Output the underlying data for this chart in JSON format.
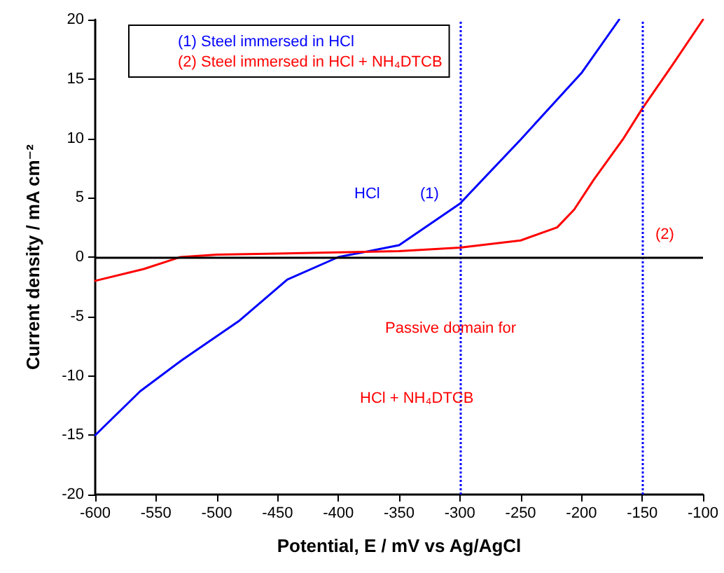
{
  "chart_data": {
    "type": "line",
    "xlabel": "Potential, E / mV vs Ag/AgCl",
    "ylabel": "Current density / mA cm⁻²",
    "xlim": [
      -600,
      -100
    ],
    "xticks": [
      -600,
      -550,
      -500,
      -450,
      -400,
      -350,
      -300,
      -250,
      -200,
      -150,
      -100
    ],
    "ylim": [
      -20,
      20
    ],
    "yticks": [
      -20,
      -15,
      -10,
      -5,
      0,
      5,
      10,
      15,
      20
    ],
    "series": [
      {
        "name": "(1) Steel immersed in HCl",
        "color": "#0000ff",
        "x": [
          -600,
          -563,
          -529,
          -482,
          -442,
          -400,
          -350,
          -300,
          -250,
          -200,
          -169
        ],
        "values": [
          -15,
          -11.3,
          -8.7,
          -5.4,
          -1.9,
          0,
          1.0,
          4.5,
          9.9,
          15.5,
          20
        ]
      },
      {
        "name": "(2) Steel immersed in HCl + NH₄DTCB",
        "color": "#ff0000",
        "x": [
          -600,
          -560,
          -530,
          -500,
          -450,
          -400,
          -350,
          -300,
          -250,
          -220,
          -206,
          -190,
          -166,
          -150,
          -125,
          -100
        ],
        "values": [
          -2,
          -1,
          0,
          0.2,
          0.3,
          0.4,
          0.5,
          0.8,
          1.4,
          2.5,
          4,
          6.5,
          9.9,
          12.5,
          16.2,
          20
        ]
      }
    ],
    "ref_lines": [
      {
        "axis": "x",
        "value": -300,
        "color": "#0000ff",
        "line_style": "dotted"
      },
      {
        "axis": "x",
        "value": -150,
        "color": "#0000ff",
        "line_style": "dotted"
      },
      {
        "axis": "y",
        "value": 0,
        "color": "#000000",
        "line_style": "solid"
      }
    ],
    "annotations": [
      "HCl",
      "(1)",
      "(2)",
      "Passive domain for",
      "HCl + NH₄DTCB"
    ],
    "legend": "top left",
    "grid": false,
    "marker": "none",
    "line_style": "solid"
  }
}
